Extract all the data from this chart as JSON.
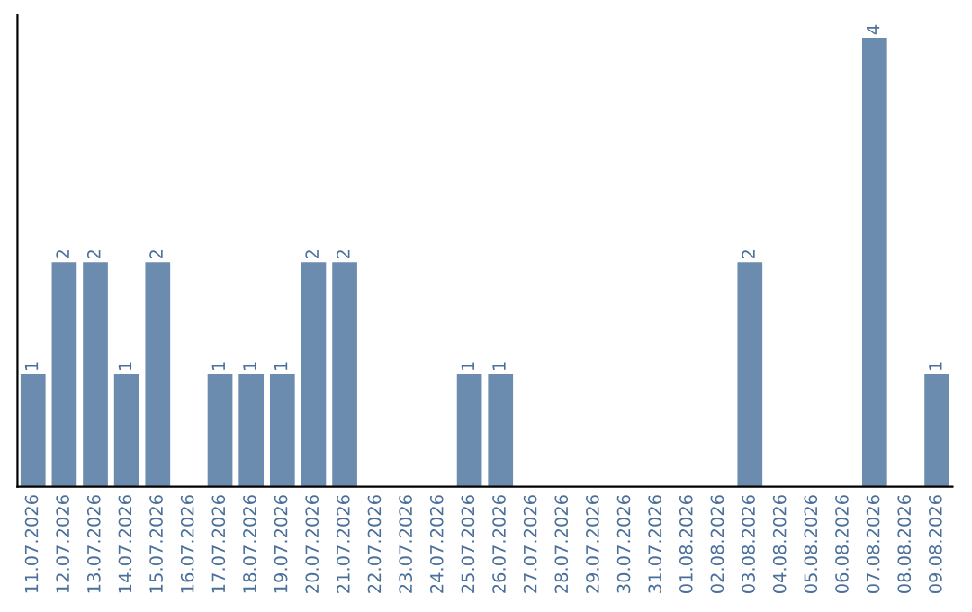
{
  "chart_data": {
    "type": "bar",
    "categories": [
      "11.07.2026",
      "12.07.2026",
      "13.07.2026",
      "14.07.2026",
      "15.07.2026",
      "16.07.2026",
      "17.07.2026",
      "18.07.2026",
      "19.07.2026",
      "20.07.2026",
      "21.07.2026",
      "22.07.2026",
      "23.07.2026",
      "24.07.2026",
      "25.07.2026",
      "26.07.2026",
      "27.07.2026",
      "28.07.2026",
      "29.07.2026",
      "30.07.2026",
      "31.07.2026",
      "01.08.2026",
      "02.08.2026",
      "03.08.2026",
      "04.08.2026",
      "05.08.2026",
      "06.08.2026",
      "07.08.2026",
      "08.08.2026",
      "09.08.2026"
    ],
    "values": [
      1,
      2,
      2,
      1,
      2,
      0,
      1,
      1,
      1,
      2,
      2,
      0,
      0,
      0,
      1,
      1,
      0,
      0,
      0,
      0,
      0,
      0,
      0,
      2,
      0,
      0,
      0,
      4,
      0,
      1
    ],
    "value_labels": [
      "1",
      "2",
      "2",
      "1",
      "2",
      null,
      "1",
      "1",
      "1",
      "2",
      "2",
      null,
      null,
      null,
      "1",
      "1",
      null,
      null,
      null,
      null,
      null,
      null,
      null,
      "2",
      null,
      null,
      null,
      "4",
      null,
      "1"
    ],
    "color": "#6b8cae",
    "ylim": [
      0,
      4.2
    ],
    "tick_labels": "x",
    "grid": false,
    "legend": false
  }
}
